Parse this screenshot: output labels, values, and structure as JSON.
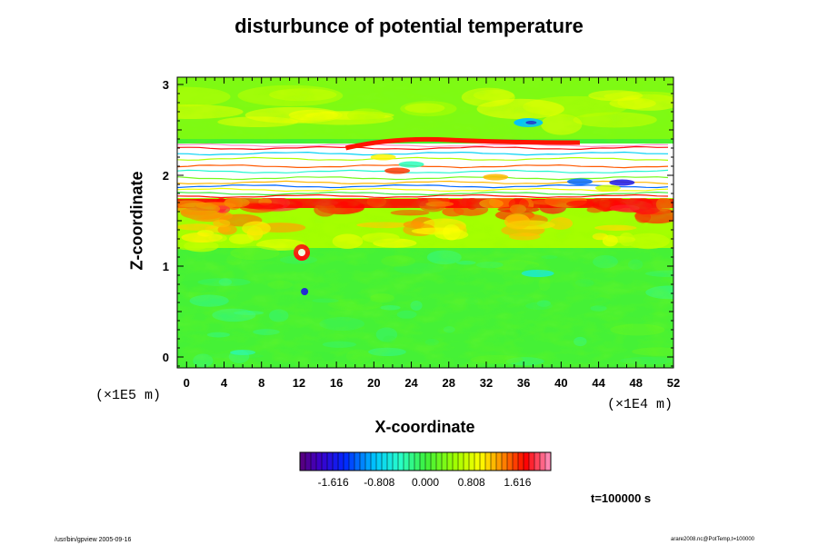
{
  "chart_data": {
    "type": "heatmap",
    "title": "disturbunce of potential temperature",
    "xlabel": "X-coordinate",
    "ylabel": "Z-coordinate",
    "x_unit": "(×1E4 m)",
    "z_unit": "(×1E5 m)",
    "xlim": [
      -1,
      52
    ],
    "ylim": [
      -0.12,
      3.08
    ],
    "x_ticks": [
      0,
      4,
      8,
      12,
      16,
      20,
      24,
      28,
      32,
      36,
      40,
      44,
      48,
      52
    ],
    "x_tick_labels": [
      "0",
      "4",
      "8",
      "12",
      "16",
      "20",
      "24",
      "28",
      "32",
      "36",
      "40",
      "44",
      "48",
      "52"
    ],
    "y_ticks": [
      0,
      1,
      2,
      3
    ],
    "y_tick_labels": [
      "0",
      "1",
      "2",
      "3"
    ],
    "colorbar": {
      "min": -2.2,
      "max": 2.2,
      "tick_values": [
        -1.616,
        -0.808,
        0.0,
        0.808,
        1.616
      ],
      "tick_labels": [
        "-1.616",
        "-0.808",
        "0.000",
        "0.808",
        "1.616"
      ],
      "colormap": "rainbow-purple-blue-cyan-green-yellow-red-pink"
    },
    "field_description_levels": [
      {
        "z": 0.3,
        "value": 0.05
      },
      {
        "z": 1.15,
        "value": 0.4
      },
      {
        "z": 1.68,
        "value": 1.6
      },
      {
        "z": 2.0,
        "value": null
      },
      {
        "z": 2.45,
        "value": 0.5
      },
      {
        "z": 2.8,
        "value": 0.4
      }
    ],
    "time_label": "t=100000 s"
  },
  "footer": {
    "left": "/usr/bin/gpview 2005-09-16",
    "right": "arare2008.nc@PotTemp,t=100000"
  }
}
